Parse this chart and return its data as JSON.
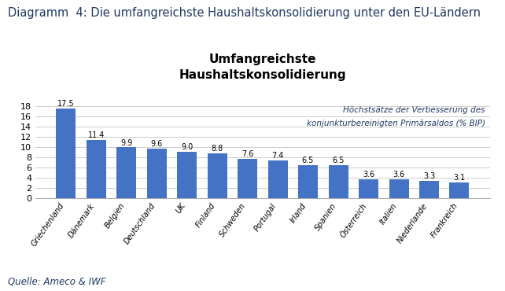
{
  "title_top": "Diagramm  4: Die umfangreichste Haushaltskonsolidierung unter den EU-Ländern",
  "chart_title_line1": "Umfangreichste",
  "chart_title_line2": "Haushaltskonsolidierung",
  "legend_text_line1": "Höchstsätze der Verbesserung des",
  "legend_text_line2": "konjunkturbereinigten Primärsaldos (% BIP)",
  "source_text": "Quelle: Ameco & IWF",
  "categories": [
    "Griechenland",
    "Dänemark",
    "Belgien",
    "Deutschland",
    "UK",
    "Finland",
    "Schweden",
    "Portugal",
    "Irland",
    "Spanien",
    "Österreich",
    "Italien",
    "Niederlande",
    "Frankreich"
  ],
  "values": [
    17.5,
    11.4,
    9.9,
    9.6,
    9.0,
    8.8,
    7.6,
    7.4,
    6.5,
    6.5,
    3.6,
    3.6,
    3.3,
    3.1
  ],
  "bar_color": "#4472C4",
  "ylim": [
    0,
    20
  ],
  "yticks": [
    0,
    2,
    4,
    6,
    8,
    10,
    12,
    14,
    16,
    18
  ],
  "background_color": "#FFFFFF",
  "grid_color": "#CCCCCC",
  "title_fontsize": 10.5,
  "title_color": "#1F3864",
  "bar_label_fontsize": 7,
  "source_fontsize": 8.5,
  "chart_title_fontsize": 11,
  "legend_fontsize": 7.5,
  "legend_color": "#1F3864",
  "xtick_fontsize": 7,
  "ytick_fontsize": 8
}
